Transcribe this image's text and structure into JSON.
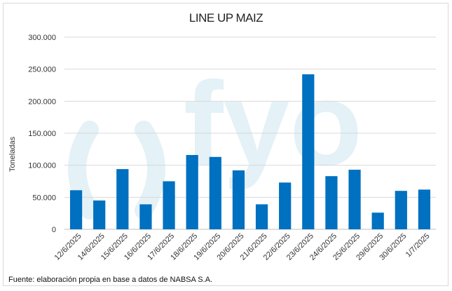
{
  "chart_data": {
    "type": "bar",
    "title": "LINE UP MAIZ",
    "ylabel": "Toneladas",
    "xlabel": "",
    "ylim": [
      0,
      300000
    ],
    "yticks": [
      "0",
      "50.000",
      "100.000",
      "150.000",
      "200.000",
      "250.000",
      "300.000"
    ],
    "categories": [
      "12/6/2025",
      "14/6/2025",
      "15/6/2025",
      "16/6/2025",
      "17/6/2025",
      "18/6/2025",
      "19/6/2025",
      "20/6/2025",
      "21/6/2025",
      "22/6/2025",
      "23/6/2025",
      "24/6/2025",
      "25/6/2025",
      "29/6/2025",
      "30/6/2025",
      "1/7/2025"
    ],
    "values": [
      61000,
      45000,
      94000,
      39000,
      75000,
      116000,
      113000,
      92000,
      39000,
      73000,
      242000,
      83000,
      93000,
      26000,
      60000,
      62000
    ],
    "bar_color": "#0070c0",
    "grid": true,
    "legend": "none"
  },
  "watermark": "( ) fyo",
  "footer": {
    "source": "Fuente: elaboración propia en base a datos de NABSA S.A."
  }
}
